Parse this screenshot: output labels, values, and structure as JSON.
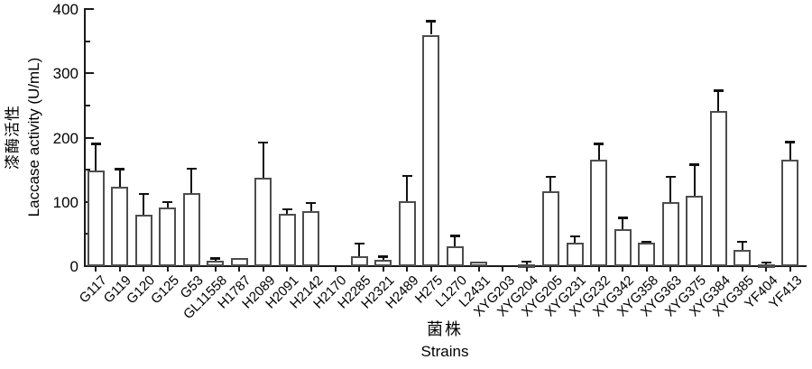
{
  "chart_data": {
    "type": "bar",
    "title": "",
    "ylabel_cn": "漆酶活性",
    "ylabel_en": "Laccase activity (U/mL)",
    "xlabel_cn": "菌株",
    "xlabel_en": "Strains",
    "ylim": [
      0,
      400
    ],
    "ytick_major": [
      0,
      100,
      200,
      300,
      400
    ],
    "ytick_minor": [
      50,
      150,
      250,
      350
    ],
    "grid": false,
    "legend": false,
    "tick_style": {
      "y_ticks": "inward",
      "x_ticks": "outward",
      "x_label_rotation_deg": 45
    },
    "categories": [
      "G117",
      "G119",
      "G120",
      "G125",
      "G53",
      "GL11558",
      "H1787",
      "H2089",
      "H2091",
      "H2142",
      "H2170",
      "H2285",
      "H2321",
      "H2489",
      "H275",
      "L1270",
      "L2431",
      "XYG203",
      "XYG204",
      "XYG205",
      "XYG231",
      "XYG232",
      "XYG342",
      "XYG358",
      "XYG363",
      "XYG375",
      "XYG384",
      "XYG385",
      "YF404",
      "YF413"
    ],
    "values": [
      149,
      124,
      80,
      91,
      114,
      8,
      12,
      138,
      82,
      85,
      0,
      16,
      10,
      101,
      360,
      31,
      7,
      0,
      3,
      116,
      36,
      165,
      57,
      36,
      100,
      110,
      242,
      25,
      3,
      165
    ],
    "errors_upper": [
      41,
      27,
      32,
      9,
      38,
      4,
      0,
      54,
      6,
      13,
      0,
      19,
      5,
      39,
      21,
      16,
      0,
      0,
      4,
      23,
      10,
      25,
      18,
      2,
      39,
      48,
      31,
      13,
      3,
      28
    ]
  },
  "colors": {
    "background": "#ffffff",
    "axis": "#1a1a1a",
    "text": "#000000",
    "bar_fill": "#ffffff",
    "bar_border": "#4d4d4d",
    "error_bar": "#111111"
  }
}
